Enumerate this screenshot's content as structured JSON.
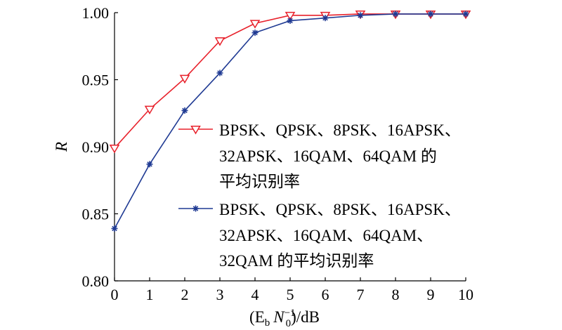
{
  "chart_data": {
    "type": "line",
    "x": [
      0,
      1,
      2,
      3,
      4,
      5,
      6,
      7,
      8,
      9,
      10
    ],
    "xlim": [
      0,
      10
    ],
    "ylim": [
      0.8,
      1.0
    ],
    "xticks": [
      "0",
      "1",
      "2",
      "3",
      "4",
      "5",
      "6",
      "7",
      "8",
      "9",
      "10"
    ],
    "yticks": [
      "0.80",
      "0.85",
      "0.90",
      "0.95",
      "1.00"
    ],
    "xlabel": "(E",
    "xlabel_sub_b": "b",
    "xlabel_N": "N",
    "xlabel_sup": "−1",
    "xlabel_sub_0": "0",
    "xlabel_unit": ")/dB",
    "ylabel": "R",
    "grid": false,
    "legend_position": "center-right",
    "series": [
      {
        "name_lines": [
          "BPSK、QPSK、8PSK、16APSK、",
          "32APSK、16QAM、64QAM 的",
          "平均识别率"
        ],
        "color": "#e8212b",
        "marker": "triangle-down",
        "values": [
          0.899,
          0.928,
          0.951,
          0.979,
          0.992,
          0.998,
          0.998,
          0.999,
          0.999,
          0.999,
          0.999
        ]
      },
      {
        "name_lines": [
          "BPSK、QPSK、8PSK、16APSK、",
          "32APSK、16QAM、64QAM、",
          "32QAM 的平均识别率"
        ],
        "color": "#1f3a93",
        "marker": "asterisk",
        "values": [
          0.839,
          0.887,
          0.927,
          0.955,
          0.985,
          0.994,
          0.996,
          0.998,
          0.999,
          0.999,
          0.999
        ]
      }
    ]
  }
}
